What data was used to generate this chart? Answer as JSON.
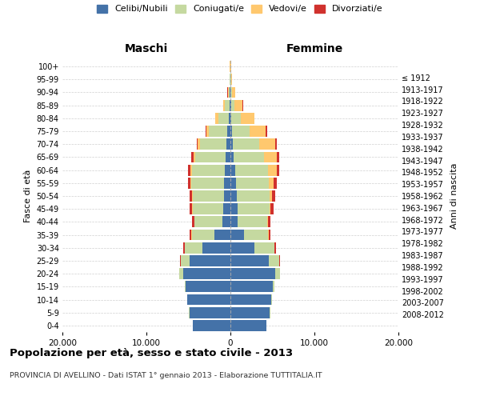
{
  "age_groups": [
    "0-4",
    "5-9",
    "10-14",
    "15-19",
    "20-24",
    "25-29",
    "30-34",
    "35-39",
    "40-44",
    "45-49",
    "50-54",
    "55-59",
    "60-64",
    "65-69",
    "70-74",
    "75-79",
    "80-84",
    "85-89",
    "90-94",
    "95-99",
    "100+"
  ],
  "birth_years": [
    "2008-2012",
    "2003-2007",
    "1998-2002",
    "1993-1997",
    "1988-1992",
    "1983-1987",
    "1978-1982",
    "1973-1977",
    "1968-1972",
    "1963-1967",
    "1958-1962",
    "1953-1957",
    "1948-1952",
    "1943-1947",
    "1938-1942",
    "1933-1937",
    "1928-1932",
    "1923-1927",
    "1918-1922",
    "1913-1917",
    "≤ 1912"
  ],
  "maschi": {
    "celibi": [
      4500,
      4900,
      5100,
      5300,
      5600,
      4900,
      3300,
      1900,
      950,
      900,
      800,
      750,
      700,
      600,
      500,
      350,
      220,
      130,
      70,
      45,
      25
    ],
    "coniugati": [
      20,
      30,
      50,
      150,
      450,
      1000,
      2100,
      2700,
      3300,
      3600,
      3700,
      3900,
      3900,
      3600,
      3100,
      2200,
      1250,
      500,
      160,
      55,
      18
    ],
    "vedovi": [
      0,
      0,
      0,
      2,
      5,
      10,
      20,
      30,
      40,
      55,
      75,
      100,
      160,
      210,
      270,
      320,
      320,
      220,
      100,
      35,
      12
    ],
    "divorziati": [
      0,
      2,
      4,
      8,
      28,
      80,
      160,
      240,
      290,
      300,
      310,
      310,
      270,
      210,
      160,
      110,
      60,
      25,
      10,
      4,
      2
    ]
  },
  "femmine": {
    "nubili": [
      4300,
      4700,
      4900,
      5000,
      5300,
      4600,
      2900,
      1600,
      870,
      820,
      720,
      630,
      530,
      420,
      310,
      200,
      130,
      80,
      45,
      30,
      18
    ],
    "coniugate": [
      20,
      30,
      50,
      200,
      600,
      1200,
      2300,
      2900,
      3500,
      3800,
      3900,
      3900,
      3900,
      3600,
      3100,
      2100,
      1150,
      420,
      130,
      45,
      15
    ],
    "vedove": [
      0,
      0,
      0,
      5,
      10,
      20,
      35,
      60,
      90,
      170,
      330,
      630,
      1050,
      1550,
      1900,
      1900,
      1550,
      950,
      380,
      115,
      35
    ],
    "divorziate": [
      0,
      2,
      4,
      8,
      28,
      80,
      160,
      240,
      290,
      340,
      370,
      380,
      330,
      270,
      220,
      140,
      70,
      30,
      12,
      5,
      2
    ]
  },
  "colors": {
    "celibi": "#4472a8",
    "coniugati": "#c5d9a0",
    "vedovi": "#ffc86e",
    "divorziati": "#d0312d"
  },
  "legend_labels": [
    "Celibi/Nubili",
    "Coniugati/e",
    "Vedovi/e",
    "Divorziati/e"
  ],
  "title": "Popolazione per età, sesso e stato civile - 2013",
  "subtitle": "PROVINCIA DI AVELLINO - Dati ISTAT 1° gennaio 2013 - Elaborazione TUTTITALIA.IT",
  "label_maschi": "Maschi",
  "label_femmine": "Femmine",
  "ylabel_left": "Fasce di età",
  "ylabel_right": "Anni di nascita",
  "xlim": 20000,
  "xticks": [
    -20000,
    -10000,
    0,
    10000,
    20000
  ],
  "xtick_labels": [
    "20.000",
    "10.000",
    "0",
    "10.000",
    "20.000"
  ],
  "background_color": "#ffffff",
  "grid_color": "#cccccc",
  "bar_height": 0.85
}
